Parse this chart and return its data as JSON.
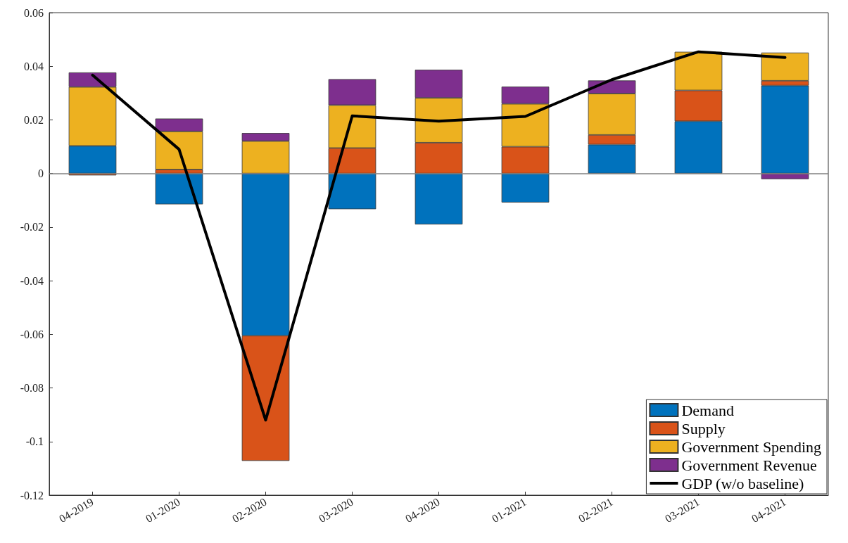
{
  "chart_data": {
    "type": "bar",
    "stacked": true,
    "categories": [
      "04-2019",
      "01-2020",
      "02-2020",
      "03-2020",
      "04-2020",
      "01-2021",
      "02-2021",
      "03-2021",
      "04-2021"
    ],
    "series": [
      {
        "name": "Demand",
        "color": "#0072bd",
        "values": [
          0.0103,
          -0.0115,
          -0.0605,
          -0.0133,
          -0.019,
          -0.0108,
          0.0108,
          0.0195,
          0.0328
        ]
      },
      {
        "name": "Supply",
        "color": "#d95319",
        "values": [
          -0.0007,
          0.0015,
          -0.0467,
          0.0095,
          0.0115,
          0.01,
          0.0036,
          0.0115,
          0.0018
        ]
      },
      {
        "name": "Government Spending",
        "color": "#edb120",
        "values": [
          0.022,
          0.0142,
          0.0121,
          0.016,
          0.0167,
          0.016,
          0.0154,
          0.0144,
          0.0105
        ]
      },
      {
        "name": "Government Revenue",
        "color": "#7e2f8e",
        "values": [
          0.0054,
          0.0048,
          0.003,
          0.0097,
          0.0105,
          0.0064,
          0.0049,
          null,
          -0.0021
        ]
      },
      {
        "name": "GDP (w/o baseline)",
        "type": "line",
        "color": "#000000",
        "values": [
          0.0367,
          0.009,
          -0.092,
          0.0215,
          0.0195,
          0.0213,
          0.035,
          0.0454,
          0.0433
        ]
      }
    ],
    "ylim": [
      -0.12,
      0.06
    ],
    "yticks": [
      -0.12,
      -0.1,
      -0.08,
      -0.06,
      -0.04,
      -0.02,
      0,
      0.02,
      0.04,
      0.06
    ],
    "ref_lines": [
      {
        "axis": "y",
        "value": 0,
        "color": "#808080"
      }
    ],
    "grid": false,
    "legend": "bottom right",
    "marker": "none",
    "line_style": "solid"
  }
}
